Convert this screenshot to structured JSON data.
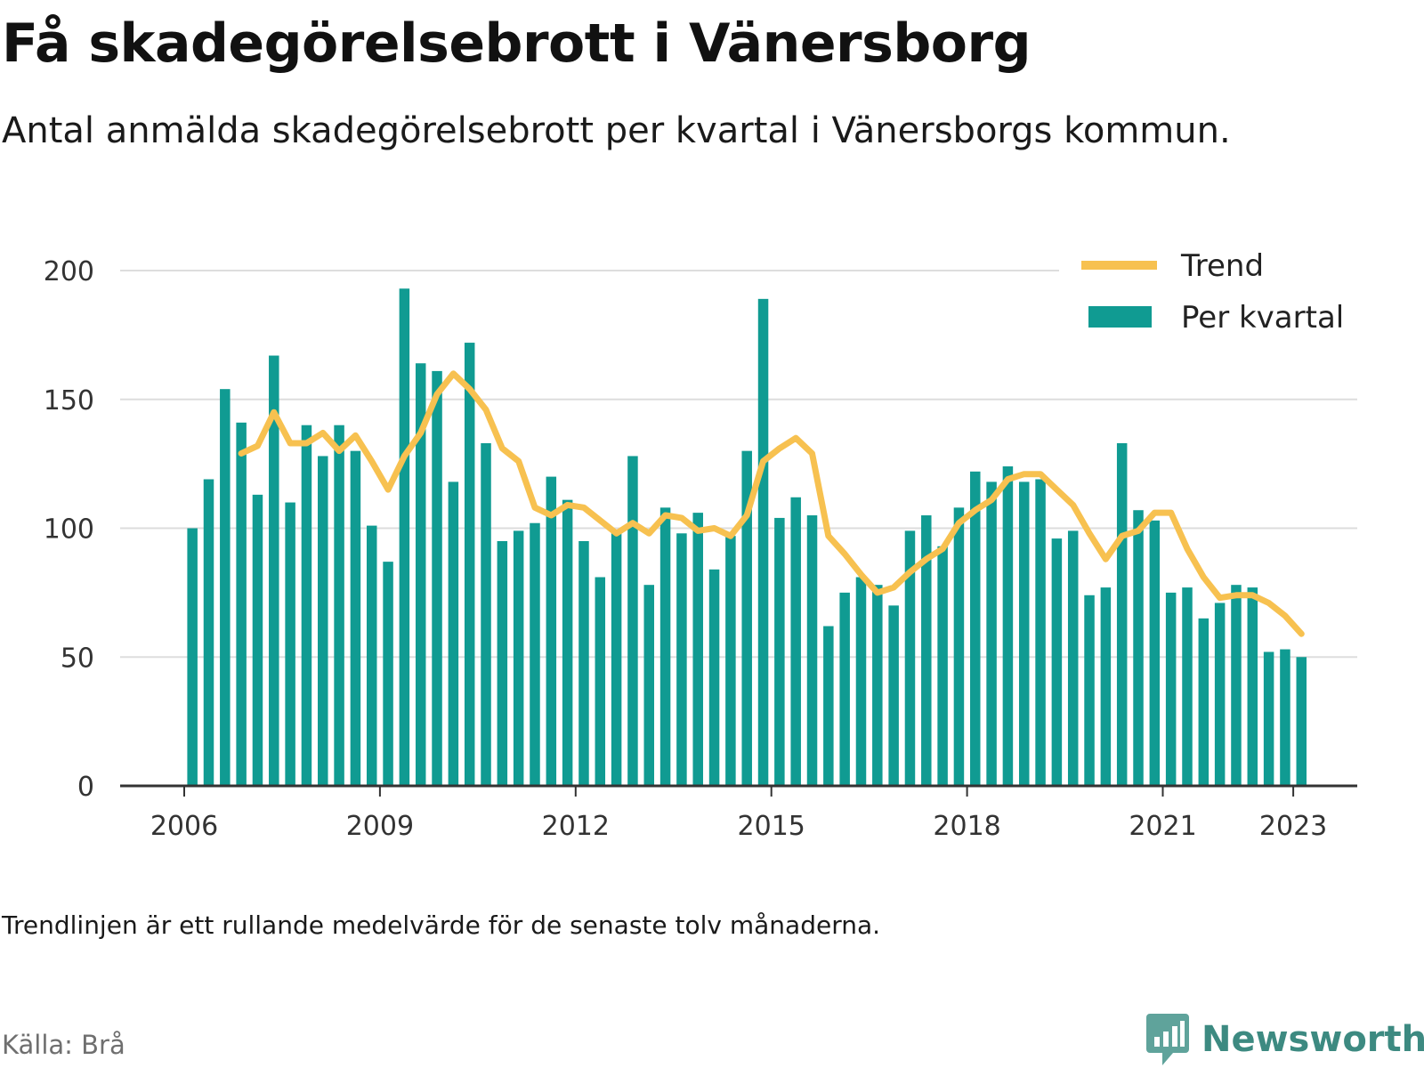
{
  "title": "Få skadegörelsebrott i Vänersborg",
  "subtitle": "Antal anmälda skadegörelsebrott per kvartal i Vänersborgs kommun.",
  "note": "Trendlinjen är ett rullande medelvärde för de senaste tolv månaderna.",
  "source": "Källa: Brå",
  "brand": {
    "name": "Newsworthy",
    "icon": "newsworthy-logo-icon"
  },
  "colors": {
    "bars": "#109b92",
    "trend": "#f7c150",
    "grid": "#dddddd",
    "axis": "#333333",
    "brand": "#3d8a81"
  },
  "chart_data": {
    "type": "bar",
    "x_start": "2006 Q1",
    "frequency": "quarterly",
    "ylim": [
      0,
      200
    ],
    "yticks": [
      0,
      50,
      100,
      150,
      200
    ],
    "xticks": [
      "2006",
      "2009",
      "2012",
      "2015",
      "2018",
      "2021",
      "2023"
    ],
    "grid": true,
    "legend_position": "top-right",
    "series": [
      {
        "name": "Per kvartal",
        "type": "bar",
        "values": [
          100,
          119,
          154,
          141,
          113,
          167,
          110,
          140,
          128,
          140,
          130,
          101,
          87,
          193,
          164,
          161,
          118,
          172,
          133,
          95,
          99,
          102,
          120,
          111,
          95,
          81,
          98,
          128,
          78,
          108,
          98,
          106,
          84,
          97,
          130,
          189,
          104,
          112,
          105,
          62,
          75,
          81,
          78,
          70,
          99,
          105,
          93,
          108,
          122,
          118,
          124,
          118,
          119,
          96,
          99,
          74,
          77,
          133,
          107,
          103,
          75,
          77,
          65,
          71,
          78,
          77,
          52,
          53,
          50
        ]
      },
      {
        "name": "Trend",
        "type": "line",
        "values": [
          null,
          null,
          null,
          129,
          132,
          145,
          133,
          133,
          137,
          130,
          136,
          126,
          115,
          128,
          137,
          152,
          160,
          154,
          146,
          131,
          126,
          108,
          105,
          109,
          108,
          103,
          98,
          102,
          98,
          105,
          104,
          99,
          100,
          97,
          105,
          126,
          131,
          135,
          129,
          97,
          90,
          82,
          75,
          77,
          83,
          88,
          92,
          102,
          107,
          111,
          119,
          121,
          121,
          115,
          109,
          98,
          88,
          97,
          99,
          106,
          106,
          92,
          81,
          73,
          74,
          74,
          71,
          66,
          59
        ]
      }
    ]
  }
}
